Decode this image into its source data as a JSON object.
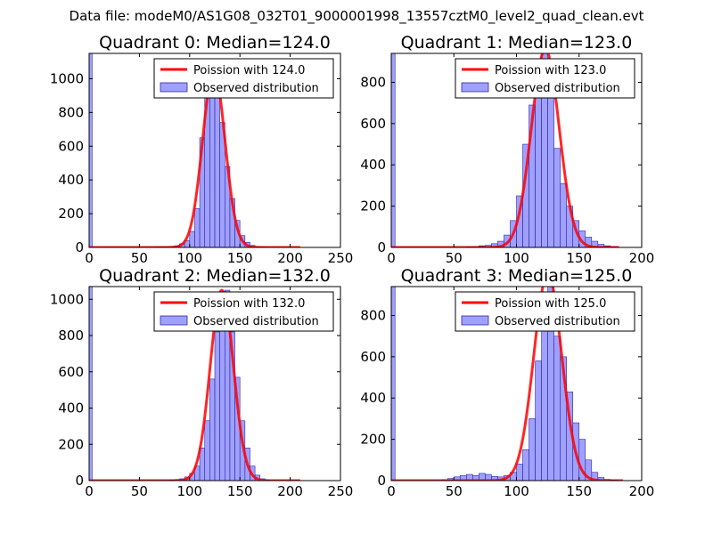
{
  "figure_title": "Data file: modeM0/AS1G08_032T01_9000001998_13557cztM0_level2_quad_clean.evt",
  "colors": {
    "bars": "#8080ff",
    "bar_edge": "#2a2aa8",
    "curve": "#ff0000",
    "axes": "#000000"
  },
  "chart_data": [
    {
      "type": "bar",
      "title": "Quadrant 0: Median=124.0",
      "legend": [
        "Poission with 124.0",
        "Observed distribution"
      ],
      "legend_position": "upper-right",
      "xlim": [
        0,
        250
      ],
      "ylim": [
        0,
        1150
      ],
      "xticks": [
        0,
        50,
        100,
        150,
        200,
        250
      ],
      "yticks": [
        0,
        200,
        400,
        600,
        800,
        1000
      ],
      "lambda": 124.0,
      "curve_x_range": [
        0,
        210
      ],
      "bins": [
        0,
        5,
        65,
        70,
        75,
        80,
        85,
        90,
        95,
        100,
        105,
        110,
        115,
        120,
        125,
        130,
        135,
        140,
        145,
        150,
        155,
        160,
        165,
        170
      ],
      "counts": [
        1150,
        0,
        3,
        5,
        4,
        6,
        10,
        22,
        40,
        95,
        230,
        650,
        1050,
        1030,
        940,
        740,
        480,
        290,
        160,
        70,
        30,
        12,
        6,
        3
      ]
    },
    {
      "type": "bar",
      "title": "Quadrant 1: Median=123.0",
      "legend": [
        "Poission with 123.0",
        "Observed distribution"
      ],
      "legend_position": "upper-right",
      "xlim": [
        0,
        200
      ],
      "ylim": [
        0,
        940
      ],
      "xticks": [
        0,
        50,
        100,
        150,
        200
      ],
      "yticks": [
        0,
        200,
        400,
        600,
        800
      ],
      "lambda": 123.0,
      "curve_x_range": [
        0,
        182
      ],
      "bins": [
        0,
        3,
        60,
        65,
        70,
        75,
        80,
        85,
        90,
        95,
        100,
        105,
        110,
        115,
        120,
        125,
        130,
        135,
        140,
        145,
        150,
        155,
        160,
        165,
        170,
        175
      ],
      "counts": [
        940,
        0,
        3,
        5,
        8,
        10,
        18,
        30,
        60,
        130,
        250,
        500,
        690,
        850,
        960,
        730,
        480,
        310,
        200,
        130,
        80,
        50,
        30,
        15,
        8,
        4
      ]
    },
    {
      "type": "bar",
      "title": "Quadrant 2: Median=132.0",
      "legend": [
        "Poission with 132.0",
        "Observed distribution"
      ],
      "legend_position": "upper-right",
      "xlim": [
        0,
        250
      ],
      "ylim": [
        0,
        1070
      ],
      "xticks": [
        0,
        50,
        100,
        150,
        200,
        250
      ],
      "yticks": [
        0,
        200,
        400,
        600,
        800,
        1000
      ],
      "lambda": 132.0,
      "curve_x_range": [
        0,
        210
      ],
      "bins": [
        0,
        5,
        80,
        85,
        90,
        95,
        100,
        105,
        110,
        115,
        120,
        125,
        130,
        135,
        140,
        145,
        150,
        155,
        160,
        165,
        170,
        175
      ],
      "counts": [
        1070,
        0,
        4,
        6,
        10,
        20,
        40,
        80,
        180,
        330,
        560,
        820,
        1000,
        1050,
        820,
        570,
        330,
        180,
        80,
        30,
        10,
        4
      ]
    },
    {
      "type": "bar",
      "title": "Quadrant 3: Median=125.0",
      "legend": [
        "Poission with 125.0",
        "Observed distribution"
      ],
      "legend_position": "upper-right",
      "xlim": [
        0,
        200
      ],
      "ylim": [
        0,
        940
      ],
      "xticks": [
        0,
        50,
        100,
        150,
        200
      ],
      "yticks": [
        0,
        200,
        400,
        600,
        800
      ],
      "lambda": 125.0,
      "curve_x_range": [
        0,
        185
      ],
      "bins": [
        0,
        3,
        40,
        45,
        50,
        55,
        60,
        65,
        70,
        75,
        80,
        85,
        90,
        95,
        100,
        105,
        110,
        115,
        120,
        125,
        130,
        135,
        140,
        145,
        150,
        155,
        160,
        165,
        170,
        175
      ],
      "counts": [
        940,
        0,
        5,
        10,
        18,
        25,
        30,
        25,
        35,
        30,
        20,
        18,
        25,
        40,
        80,
        150,
        300,
        580,
        830,
        1000,
        700,
        600,
        430,
        280,
        200,
        100,
        40,
        15,
        6,
        3
      ]
    }
  ]
}
